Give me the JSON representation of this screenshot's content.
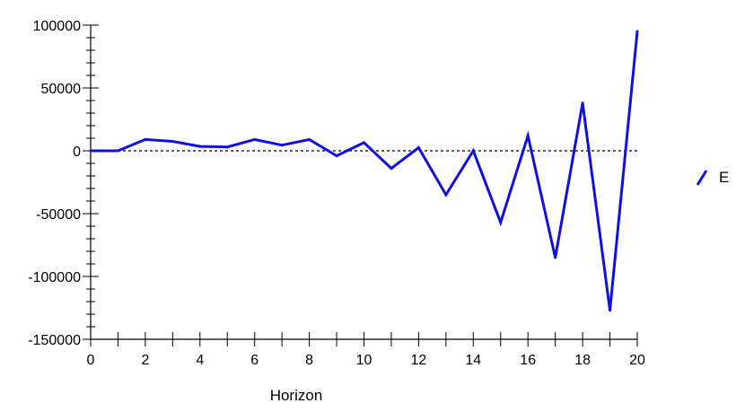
{
  "chart_data": {
    "type": "line",
    "title": "",
    "xlabel": "Horizon",
    "ylabel": "",
    "xlim": [
      0,
      20
    ],
    "ylim": [
      -150000,
      100000
    ],
    "x_ticks": [
      "0",
      "2",
      "4",
      "6",
      "8",
      "10",
      "12",
      "14",
      "16",
      "18",
      "20"
    ],
    "y_ticks": [
      "100000",
      "50000",
      "0",
      "-50000",
      "-100000",
      "-150000"
    ],
    "x": [
      0,
      1,
      2,
      3,
      4,
      5,
      6,
      7,
      8,
      9,
      10,
      11,
      12,
      13,
      14,
      15,
      16,
      17,
      18,
      19,
      20
    ],
    "series": [
      {
        "name": "E",
        "color": "#1010e0",
        "values": [
          0,
          0,
          9000,
          7500,
          3500,
          3000,
          9000,
          4500,
          9000,
          -4000,
          6500,
          -14000,
          2500,
          -35000,
          0,
          -57000,
          12000,
          -85000,
          38000,
          -127000,
          95000
        ]
      }
    ],
    "zero_line": {
      "style": "dashed",
      "color": "#000000"
    },
    "grid": false,
    "legend_position": "right"
  }
}
